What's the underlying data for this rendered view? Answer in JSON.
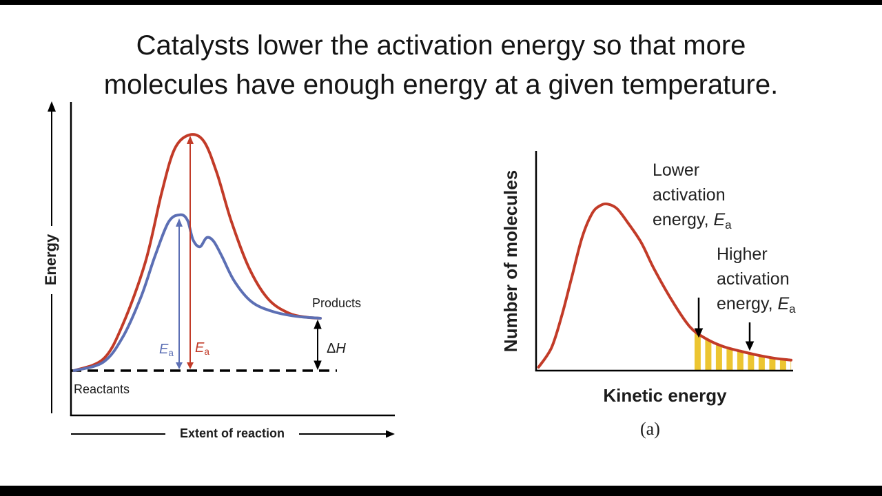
{
  "page": {
    "background": "#ffffff",
    "letterbox_color": "#000000"
  },
  "title": {
    "line1": "Catalysts lower the activation energy so that more",
    "line2": "molecules have enough energy at a given temperature."
  },
  "reaction_diagram": {
    "ylabel": "Energy",
    "xlabel": "Extent of reaction",
    "reactants_label": "Reactants",
    "products_label": "Products",
    "delta_h": {
      "delta": "Δ",
      "h": "H"
    },
    "ea_catalyzed": {
      "symbol": "E",
      "sub": "a"
    },
    "ea_uncatalyzed": {
      "symbol": "E",
      "sub": "a"
    },
    "colors": {
      "uncatalyzed_curve": "#c23b28",
      "catalyzed_curve": "#5c6fb4",
      "axis": "#000000"
    }
  },
  "distribution_diagram": {
    "ylabel": "Number of molecules",
    "xlabel": "Kinetic energy",
    "caption": "(a)",
    "lower_annotation": {
      "line1": "Lower",
      "line2": "activation",
      "line3_prefix": "energy, ",
      "ea_symbol": "E",
      "ea_sub": "a"
    },
    "higher_annotation": {
      "line1": "Higher",
      "line2": "activation",
      "line3_prefix": "energy, ",
      "ea_symbol": "E",
      "ea_sub": "a"
    },
    "colors": {
      "curve": "#c23b28",
      "shaded": "#ecc531"
    }
  },
  "chart_data": [
    {
      "type": "line",
      "xlabel": "Extent of reaction",
      "ylabel": "Energy",
      "x_range": [
        0,
        100
      ],
      "y_range": [
        0,
        100
      ],
      "units": "arbitrary (qualitative diagram, axes unlabeled numerically)",
      "grid": false,
      "legend": "none",
      "reactants_level": 14,
      "products_level": 31,
      "series": [
        {
          "name": "Uncatalyzed pathway",
          "color": "#c23b28",
          "points": [
            [
              1,
              14.3
            ],
            [
              10,
              18
            ],
            [
              16,
              29
            ],
            [
              23,
              49
            ],
            [
              28,
              71
            ],
            [
              32,
              85
            ],
            [
              36.6,
              89.5
            ],
            [
              41,
              87.5
            ],
            [
              45,
              77.5
            ],
            [
              49.5,
              62
            ],
            [
              55,
              47
            ],
            [
              61,
              37
            ],
            [
              67.5,
              32.5
            ],
            [
              73,
              31.3
            ],
            [
              77,
              31
            ]
          ]
        },
        {
          "name": "Catalyzed pathway",
          "color": "#5c6fb4",
          "points": [
            [
              1,
              14.3
            ],
            [
              10,
              17
            ],
            [
              16,
              25
            ],
            [
              21.7,
              38
            ],
            [
              26,
              51
            ],
            [
              30.2,
              61.8
            ],
            [
              33.8,
              64
            ],
            [
              36,
              62.2
            ],
            [
              37.7,
              56
            ],
            [
              39.8,
              53.8
            ],
            [
              41.9,
              56.7
            ],
            [
              44,
              55.6
            ],
            [
              46.6,
              50.8
            ],
            [
              50.4,
              42.9
            ],
            [
              55.7,
              36.3
            ],
            [
              62.1,
              33.2
            ],
            [
              69.6,
              31.6
            ],
            [
              77,
              31
            ]
          ]
        }
      ],
      "annotations": [
        {
          "label": "Reactants",
          "y": 14
        },
        {
          "label": "Products",
          "y": 31
        },
        {
          "label": "Ea catalyzed (blue double arrow)",
          "from_y": 14,
          "to_y": 64
        },
        {
          "label": "Ea uncatalyzed (red double arrow)",
          "from_y": 14,
          "to_y": 89.5
        },
        {
          "label": "ΔH (double arrow between products and reactants levels)",
          "from_y": 31,
          "to_y": 14
        }
      ]
    },
    {
      "type": "line",
      "xlabel": "Kinetic energy",
      "ylabel": "Number of molecules",
      "x_range": [
        0,
        100
      ],
      "y_range": [
        0,
        100
      ],
      "units": "arbitrary (qualitative diagram, axes unlabeled numerically)",
      "grid": false,
      "legend": "none",
      "series": [
        {
          "name": "Molecular kinetic energy distribution",
          "color": "#c23b28",
          "points": [
            [
              1,
              1.6
            ],
            [
              6,
              10.4
            ],
            [
              10,
              25
            ],
            [
              14,
              43
            ],
            [
              18,
              61
            ],
            [
              22,
              72
            ],
            [
              25.3,
              75.5
            ],
            [
              28,
              76
            ],
            [
              31.5,
              74
            ],
            [
              35.5,
              68
            ],
            [
              41,
              58.5
            ],
            [
              46,
              46.5
            ],
            [
              53,
              32
            ],
            [
              60,
              20
            ],
            [
              66.4,
              14.5
            ],
            [
              73,
              11
            ],
            [
              80,
              8.8
            ],
            [
              86.6,
              7
            ],
            [
              93.3,
              5.6
            ],
            [
              99.5,
              4.8
            ]
          ]
        }
      ],
      "shaded_region": {
        "style": "yellow-vertical-stripes",
        "color": "#ecc531",
        "from_x": 61.8,
        "to_x": 99.5,
        "meaning": "molecules with kinetic energy above the lower activation energy"
      },
      "annotations": [
        {
          "label": "Lower activation energy, Ea",
          "arrow_x": 63.5
        },
        {
          "label": "Higher activation energy, Ea",
          "arrow_x": 83.3
        }
      ],
      "caption": "(a)"
    }
  ]
}
